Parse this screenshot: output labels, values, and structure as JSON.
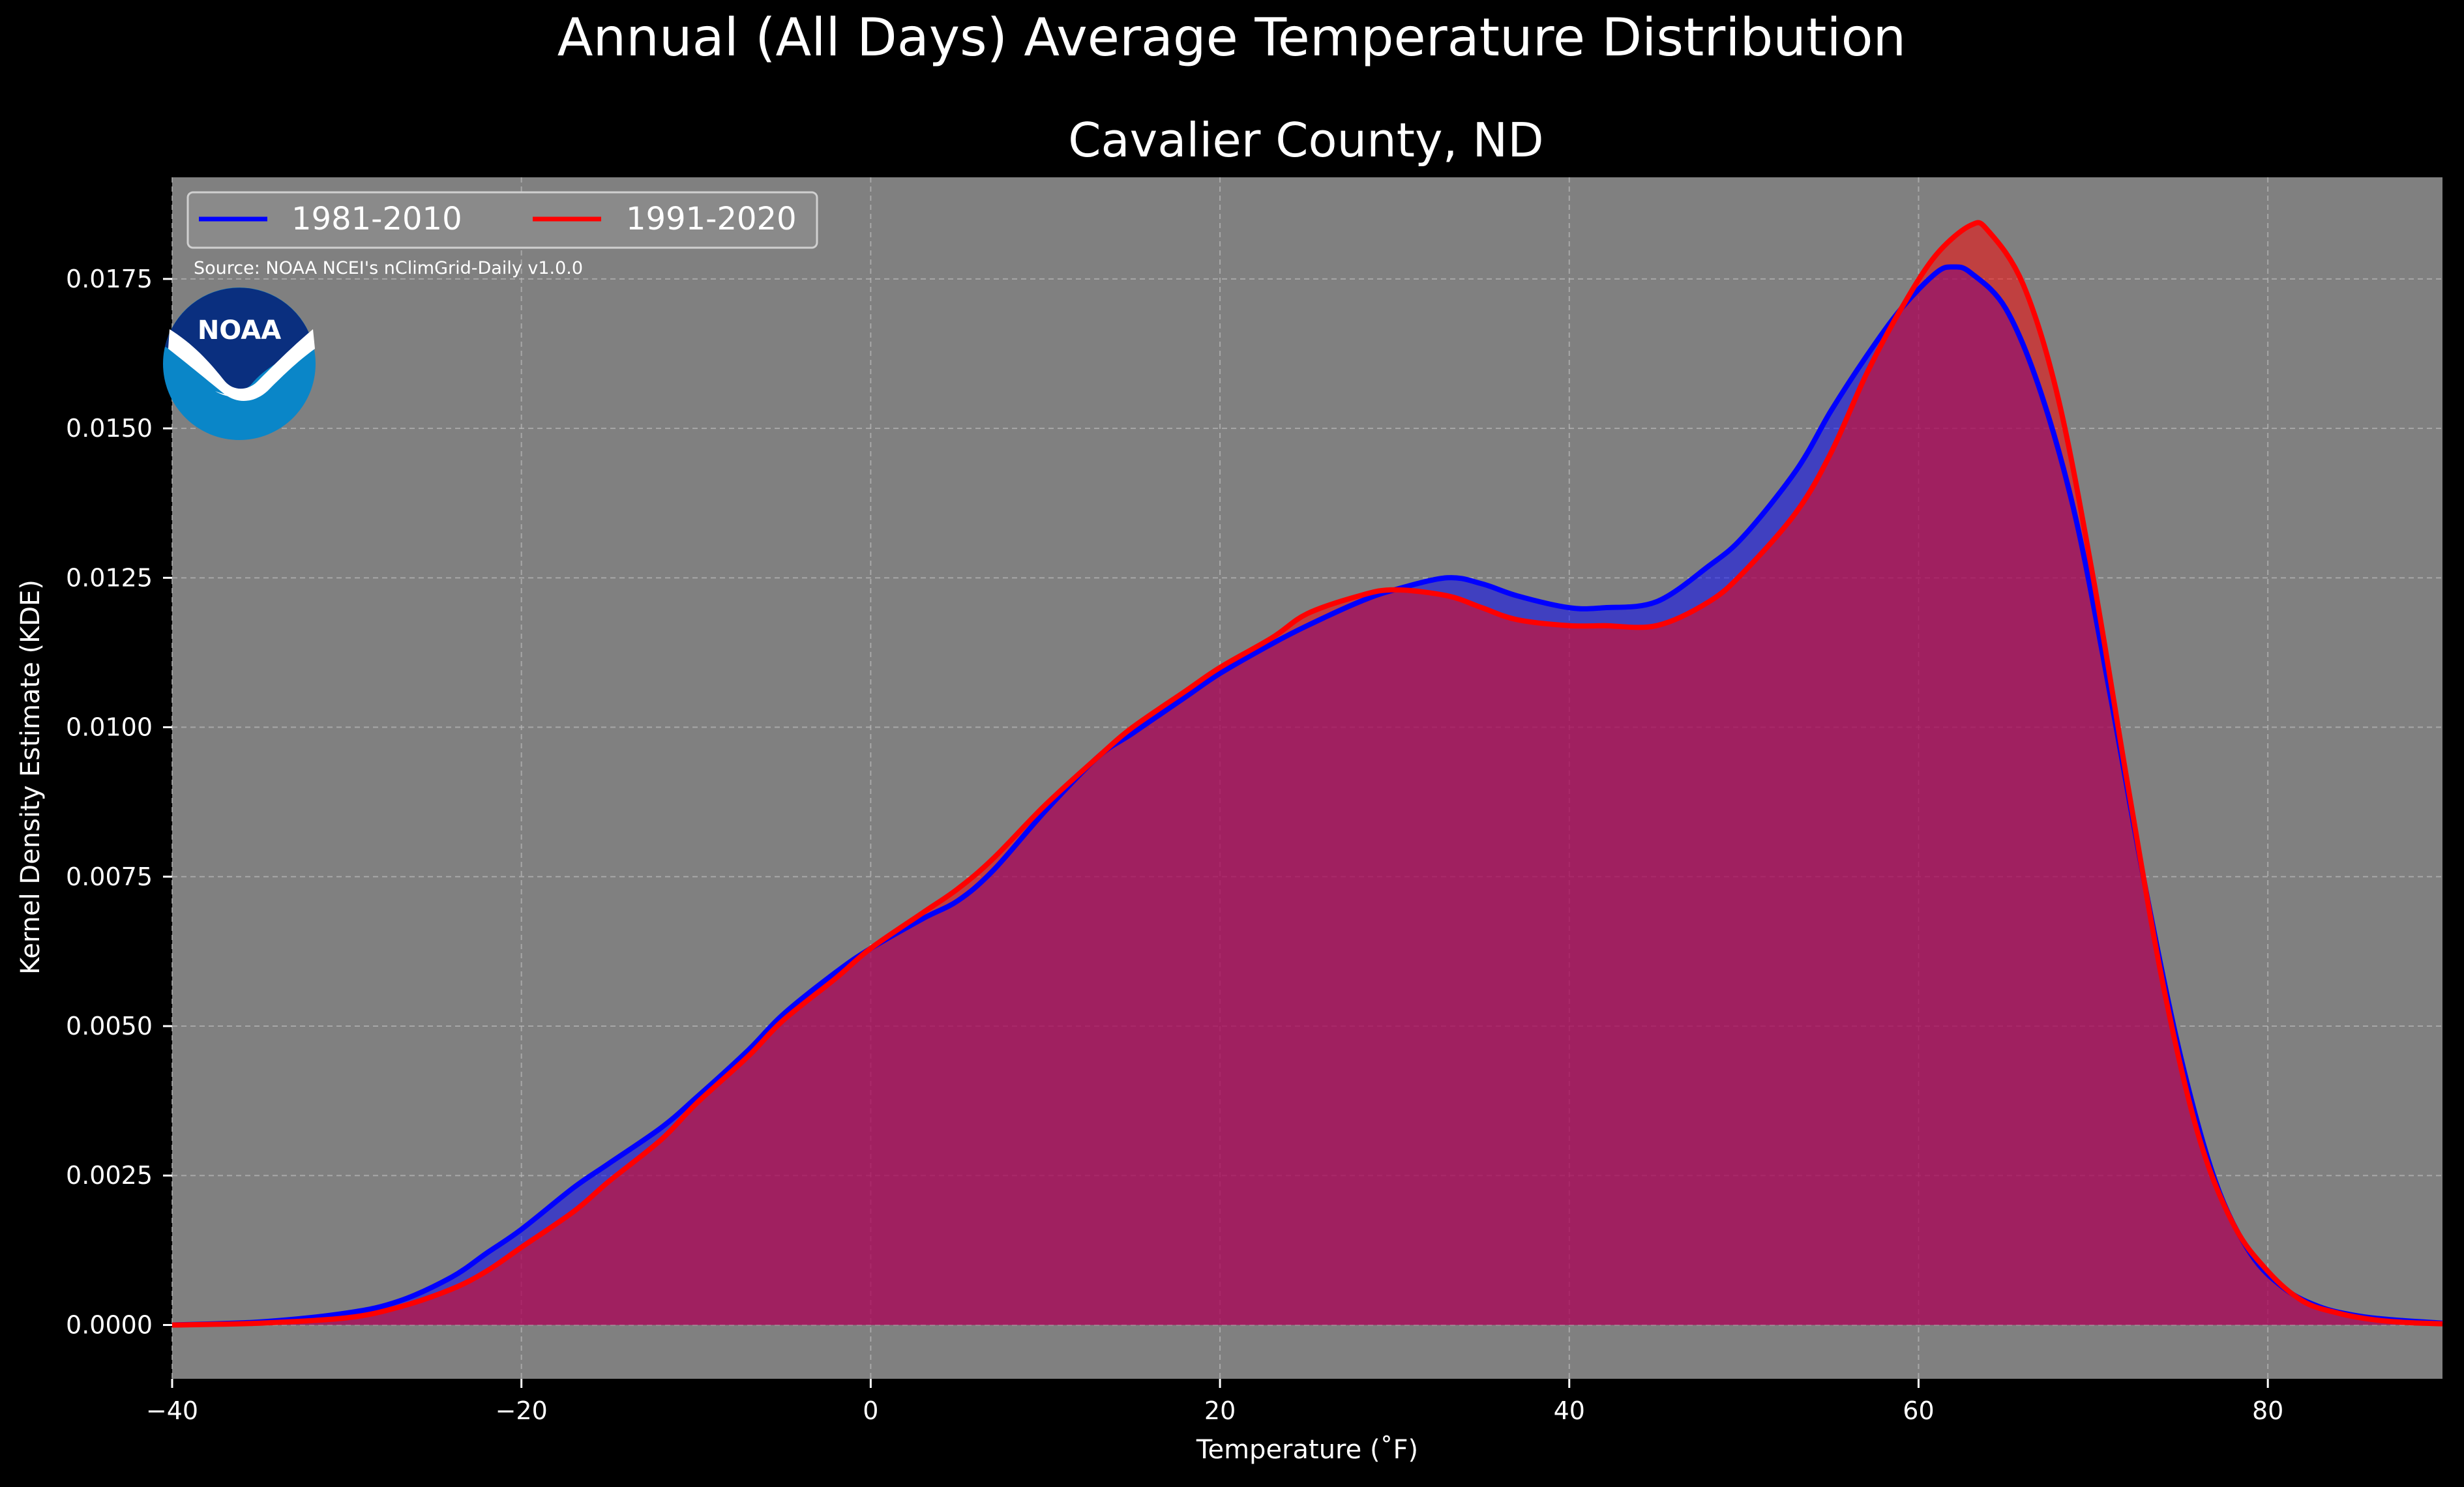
{
  "colors": {
    "figure_background": "#000000",
    "plot_background": "#808080",
    "grid": "#b0b0b0",
    "text": "#ffffff",
    "series_1981_2010": "#0000ff",
    "series_1991_2020": "#ff0000",
    "noaa_dark_blue": "#0a2f7f",
    "noaa_light_blue": "#0a86c8"
  },
  "logo": {
    "icon": "noaa-logo-icon",
    "text": "NOAA"
  },
  "chart_data": {
    "type": "area",
    "suptitle": "Annual (All Days) Average Temperature Distribution",
    "title": "Cavalier County, ND",
    "xlabel": "Temperature (˚F)",
    "ylabel": "Kernel Density Estimate (KDE)",
    "source_note": "Source: NOAA NCEI's nClimGrid-Daily v1.0.0",
    "xlim": [
      -40,
      90
    ],
    "ylim": [
      -0.0009,
      0.0192
    ],
    "xticks": [
      -40,
      -20,
      0,
      20,
      40,
      60,
      80
    ],
    "xtick_labels": [
      "−40",
      "−20",
      "0",
      "20",
      "40",
      "60",
      "80"
    ],
    "yticks": [
      0.0,
      0.0025,
      0.005,
      0.0075,
      0.01,
      0.0125,
      0.015,
      0.0175
    ],
    "ytick_labels": [
      "0.0000",
      "0.0025",
      "0.0050",
      "0.0075",
      "0.0100",
      "0.0125",
      "0.0150",
      "0.0175"
    ],
    "grid": true,
    "legend_position": "upper-left",
    "series": [
      {
        "name": "1981-2010",
        "color": "#0000ff",
        "points": [
          [
            -40,
            0.0
          ],
          [
            -35,
            5e-05
          ],
          [
            -30,
            0.0002
          ],
          [
            -27,
            0.0004
          ],
          [
            -24,
            0.0008
          ],
          [
            -22,
            0.0012
          ],
          [
            -20,
            0.0016
          ],
          [
            -17,
            0.0023
          ],
          [
            -15,
            0.0027
          ],
          [
            -12,
            0.0033
          ],
          [
            -10,
            0.0038
          ],
          [
            -7,
            0.0046
          ],
          [
            -5,
            0.0052
          ],
          [
            -2,
            0.0059
          ],
          [
            0,
            0.0063
          ],
          [
            3,
            0.0068
          ],
          [
            5,
            0.0071
          ],
          [
            7,
            0.0076
          ],
          [
            10,
            0.0086
          ],
          [
            13,
            0.0095
          ],
          [
            15,
            0.0099
          ],
          [
            18,
            0.0105
          ],
          [
            20,
            0.0109
          ],
          [
            23,
            0.0114
          ],
          [
            25,
            0.0117
          ],
          [
            28,
            0.0121
          ],
          [
            30,
            0.0123
          ],
          [
            33,
            0.0125
          ],
          [
            35,
            0.0124
          ],
          [
            37,
            0.0122
          ],
          [
            40,
            0.012
          ],
          [
            42,
            0.012
          ],
          [
            45,
            0.0121
          ],
          [
            48,
            0.0127
          ],
          [
            50,
            0.0132
          ],
          [
            53,
            0.0143
          ],
          [
            55,
            0.0153
          ],
          [
            57,
            0.0162
          ],
          [
            59,
            0.017
          ],
          [
            61,
            0.0176
          ],
          [
            62,
            0.0177
          ],
          [
            63,
            0.0176
          ],
          [
            65,
            0.017
          ],
          [
            67,
            0.0156
          ],
          [
            69,
            0.0135
          ],
          [
            71,
            0.0105
          ],
          [
            73,
            0.0073
          ],
          [
            75,
            0.0045
          ],
          [
            77,
            0.0024
          ],
          [
            79,
            0.0012
          ],
          [
            81,
            0.0006
          ],
          [
            83,
            0.0003
          ],
          [
            85,
            0.00016
          ],
          [
            87,
            9e-05
          ],
          [
            90,
            3e-05
          ]
        ]
      },
      {
        "name": "1991-2020",
        "color": "#ff0000",
        "points": [
          [
            -40,
            0.0
          ],
          [
            -35,
            3e-05
          ],
          [
            -30,
            0.00012
          ],
          [
            -27,
            0.0003
          ],
          [
            -24,
            0.0006
          ],
          [
            -22,
            0.0009
          ],
          [
            -20,
            0.0013
          ],
          [
            -17,
            0.0019
          ],
          [
            -15,
            0.0024
          ],
          [
            -12,
            0.0031
          ],
          [
            -10,
            0.0037
          ],
          [
            -7,
            0.0045
          ],
          [
            -5,
            0.0051
          ],
          [
            -2,
            0.0058
          ],
          [
            0,
            0.0063
          ],
          [
            3,
            0.0069
          ],
          [
            5,
            0.0073
          ],
          [
            7,
            0.0078
          ],
          [
            10,
            0.0087
          ],
          [
            13,
            0.0095
          ],
          [
            15,
            0.01
          ],
          [
            18,
            0.0106
          ],
          [
            20,
            0.011
          ],
          [
            23,
            0.0115
          ],
          [
            25,
            0.0119
          ],
          [
            28,
            0.0122
          ],
          [
            30,
            0.0123
          ],
          [
            33,
            0.0122
          ],
          [
            35,
            0.012
          ],
          [
            37,
            0.0118
          ],
          [
            40,
            0.0117
          ],
          [
            42,
            0.0117
          ],
          [
            45,
            0.0117
          ],
          [
            48,
            0.0121
          ],
          [
            50,
            0.0126
          ],
          [
            53,
            0.0136
          ],
          [
            55,
            0.0146
          ],
          [
            57,
            0.0159
          ],
          [
            59,
            0.017
          ],
          [
            61,
            0.0179
          ],
          [
            63,
            0.0184
          ],
          [
            64,
            0.0183
          ],
          [
            66,
            0.0174
          ],
          [
            68,
            0.0155
          ],
          [
            70,
            0.0125
          ],
          [
            72,
            0.009
          ],
          [
            74,
            0.0057
          ],
          [
            76,
            0.0032
          ],
          [
            78,
            0.0017
          ],
          [
            80,
            0.0009
          ],
          [
            82,
            0.0004
          ],
          [
            84,
            0.0002
          ],
          [
            86,
            9e-05
          ],
          [
            88,
            4e-05
          ],
          [
            90,
            2e-05
          ]
        ]
      }
    ]
  }
}
